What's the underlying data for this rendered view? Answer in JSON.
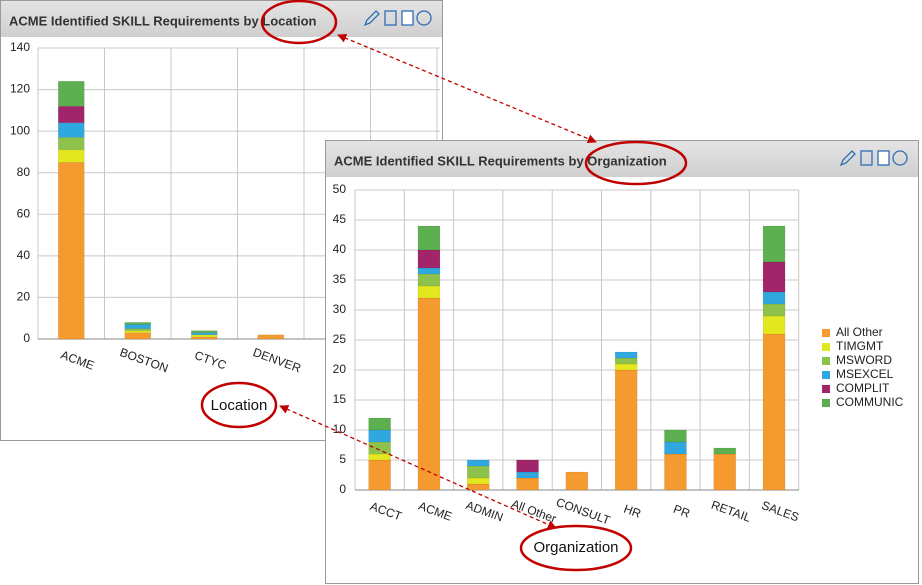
{
  "chart_data": [
    {
      "type": "bar",
      "stacked": true,
      "title": "ACME Identified SKILL Requirements by Location",
      "categories": [
        "ACME",
        "BOSTON",
        "CTYC",
        "DENVER"
      ],
      "series": [
        {
          "color": "#f59a2f",
          "values": [
            85,
            3,
            1,
            2
          ]
        },
        {
          "color": "#e3e81e",
          "values": [
            6,
            1,
            1,
            0
          ]
        },
        {
          "color": "#8fc24a",
          "values": [
            6,
            1,
            0,
            0
          ]
        },
        {
          "color": "#2fa8e0",
          "values": [
            7,
            2,
            1,
            0
          ]
        },
        {
          "color": "#a0256a",
          "values": [
            8,
            0,
            0,
            0
          ]
        },
        {
          "color": "#5cb04f",
          "values": [
            12,
            1,
            1,
            0
          ]
        }
      ],
      "ylim": [
        0,
        140
      ],
      "yticks": [
        0,
        20,
        40,
        60,
        80,
        100,
        120,
        140
      ],
      "grid": true,
      "legend": false
    },
    {
      "type": "bar",
      "stacked": true,
      "title": "ACME Identified SKILL Requirements by Organization",
      "categories": [
        "ACCT",
        "ACME",
        "ADMIN",
        "All Other",
        "CONSULT",
        "HR",
        "PR",
        "RETAIL",
        "SALES"
      ],
      "series": [
        {
          "name": "All Other",
          "color": "#f59a2f",
          "values": [
            5,
            32,
            1,
            2,
            3,
            20,
            6,
            6,
            26
          ]
        },
        {
          "name": "TIMGMT",
          "color": "#e3e81e",
          "values": [
            1,
            2,
            1,
            0,
            0,
            1,
            0,
            0,
            3
          ]
        },
        {
          "name": "MSWORD",
          "color": "#8fc24a",
          "values": [
            2,
            2,
            2,
            0,
            0,
            1,
            0,
            0,
            2
          ]
        },
        {
          "name": "MSEXCEL",
          "color": "#2fa8e0",
          "values": [
            2,
            1,
            1,
            1,
            0,
            1,
            2,
            0,
            2
          ]
        },
        {
          "name": "COMPLIT",
          "color": "#a0256a",
          "values": [
            0,
            3,
            0,
            2,
            0,
            0,
            0,
            0,
            5
          ]
        },
        {
          "name": "COMMUNIC",
          "color": "#5cb04f",
          "values": [
            2,
            4,
            0,
            0,
            0,
            0,
            2,
            1,
            6
          ]
        }
      ],
      "ylim": [
        0,
        50
      ],
      "yticks": [
        0,
        5,
        10,
        15,
        20,
        25,
        30,
        35,
        40,
        45,
        50
      ],
      "grid": true,
      "legend": true,
      "legend_position": "right"
    }
  ],
  "annotations": {
    "location": "Location",
    "organization": "Organization"
  }
}
